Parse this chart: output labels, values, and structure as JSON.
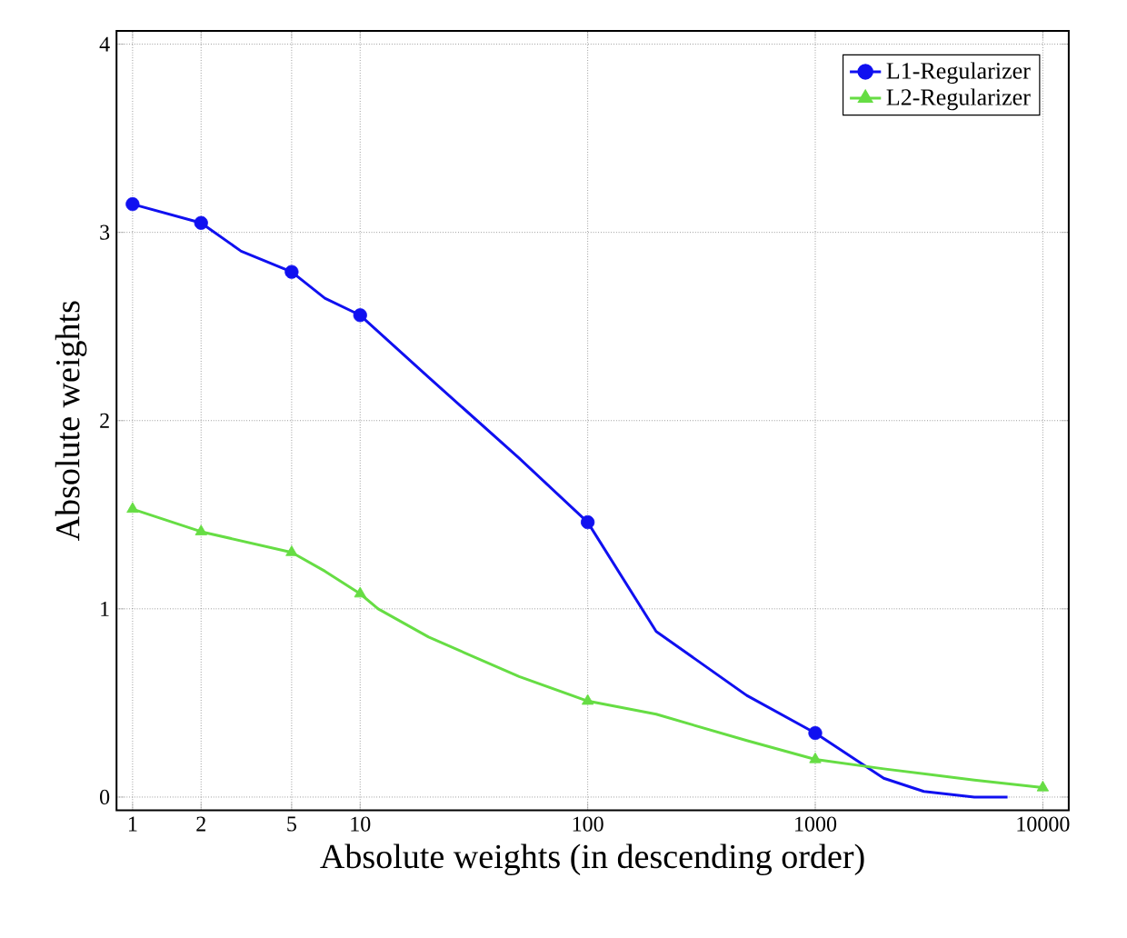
{
  "chart_data": {
    "type": "line",
    "xlabel": "Absolute weights (in descending order)",
    "ylabel": "Absolute weights",
    "log": "x",
    "grid": true,
    "legend": "top right",
    "line_style": "solid",
    "xlim": [
      0.85,
      13000
    ],
    "ylim": [
      -0.07,
      4.07
    ],
    "xticks": [
      1,
      2,
      5,
      10,
      100,
      1000,
      10000
    ],
    "yticks": [
      0,
      1,
      2,
      3,
      4
    ],
    "series": [
      {
        "color": "#1010f0",
        "marker": "none",
        "x": [
          1,
          2,
          3,
          5,
          7,
          10,
          20,
          50,
          100,
          200,
          500,
          1000,
          2000,
          3000,
          5000,
          7000
        ],
        "values": [
          3.15,
          3.05,
          2.9,
          2.79,
          2.65,
          2.56,
          2.23,
          1.8,
          1.46,
          0.88,
          0.54,
          0.34,
          0.1,
          0.03,
          0.0,
          0.0
        ]
      },
      {
        "name": "L1-Regularizer",
        "type": "scatter",
        "color": "#1010f0",
        "marker": "circle",
        "x": [
          1,
          2,
          5,
          10,
          100,
          1000
        ],
        "values": [
          3.15,
          3.05,
          2.79,
          2.56,
          1.46,
          0.34
        ]
      },
      {
        "color": "#66dd44",
        "marker": "none",
        "x": [
          1,
          2,
          5,
          7,
          10,
          12,
          20,
          50,
          100,
          200,
          500,
          1000,
          2000,
          5000,
          10000
        ],
        "values": [
          1.53,
          1.41,
          1.3,
          1.2,
          1.08,
          1.0,
          0.85,
          0.64,
          0.51,
          0.44,
          0.3,
          0.2,
          0.15,
          0.09,
          0.05
        ]
      },
      {
        "name": "L2-Regularizer",
        "type": "scatter",
        "color": "#66dd44",
        "marker": "triangle",
        "x": [
          1,
          2,
          5,
          10,
          100,
          1000,
          10000
        ],
        "values": [
          1.53,
          1.41,
          1.3,
          1.08,
          0.51,
          0.2,
          0.05
        ]
      }
    ]
  }
}
